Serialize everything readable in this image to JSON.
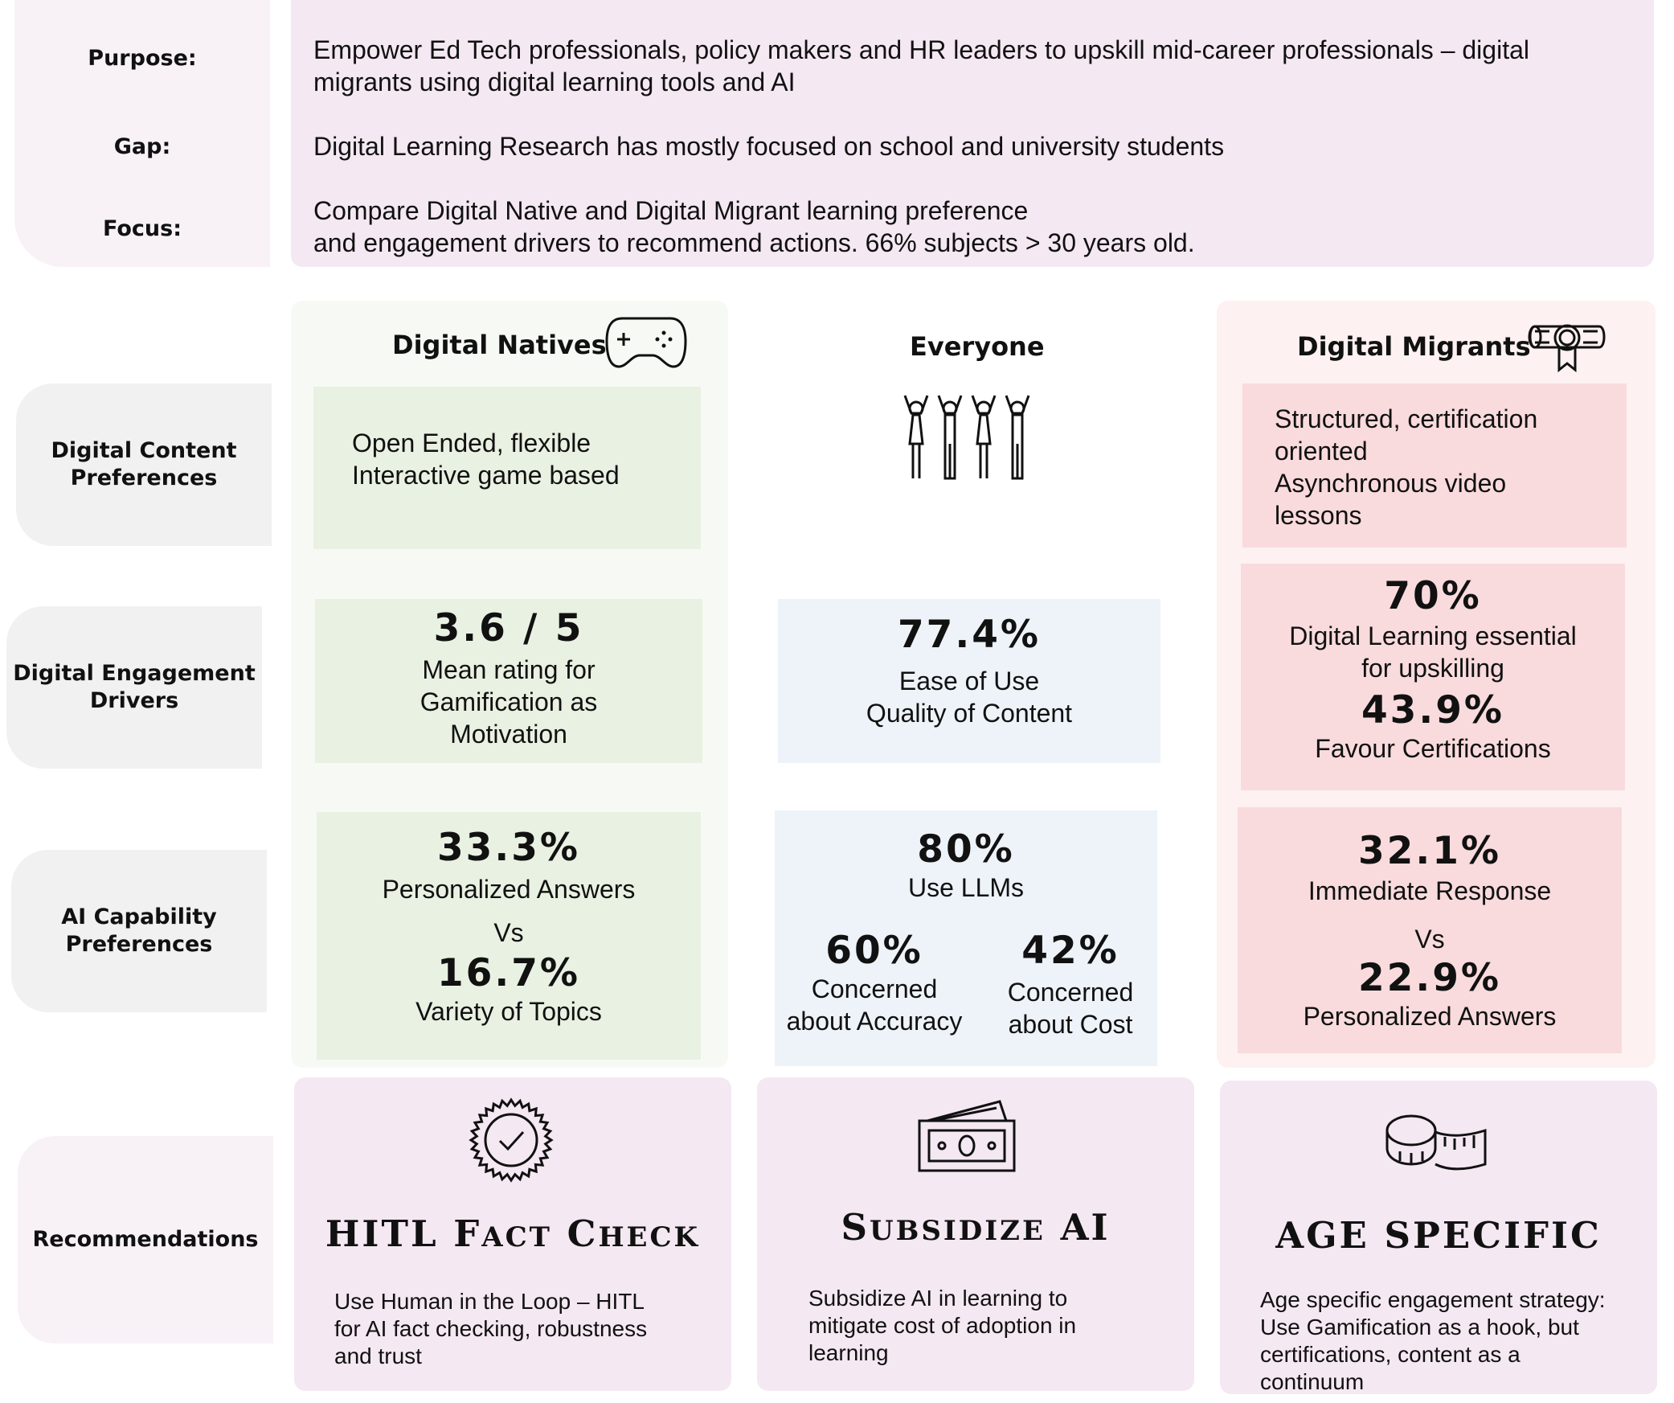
{
  "intro": {
    "purpose_label": "Purpose:",
    "purpose_text": "Empower Ed Tech professionals, policy makers and HR leaders to upskill mid-career professionals – digital migrants using digital learning tools and AI",
    "gap_label": "Gap:",
    "gap_text": "Digital Learning Research has mostly focused on school and university students",
    "focus_label": "Focus:",
    "focus_line1": "Compare Digital Native and Digital Migrant learning preference",
    "focus_line2": "and engagement drivers to recommend actions. 66% subjects > 30 years old."
  },
  "rows": {
    "content_l1": "Digital Content",
    "content_l2": "Preferences",
    "engagement_l1": "Digital Engagement",
    "engagement_l2": "Drivers",
    "ai_l1": "AI Capability",
    "ai_l2": "Preferences",
    "recommendations": "Recommendations"
  },
  "columns": {
    "natives": "Digital Natives",
    "everyone": "Everyone",
    "migrants": "Digital Migrants"
  },
  "natives": {
    "content_l1": "Open Ended, flexible",
    "content_l2": "Interactive game based",
    "engage_value": "3.6 / 5",
    "engage_l1": "Mean rating for",
    "engage_l2": "Gamification as",
    "engage_l3": "Motivation",
    "ai_value1": "33.3%",
    "ai_label1": "Personalized Answers",
    "ai_vs": "Vs",
    "ai_value2": "16.7%",
    "ai_label2": "Variety of Topics"
  },
  "everyone": {
    "engage_value": "77.4%",
    "engage_l1": "Ease of Use",
    "engage_l2": "Quality of Content",
    "ai_value": "80%",
    "ai_label": "Use LLMs",
    "ai_value_a": "60%",
    "ai_label_a1": "Concerned",
    "ai_label_a2": "about Accuracy",
    "ai_value_b": "42%",
    "ai_label_b1": "Concerned",
    "ai_label_b2": "about Cost"
  },
  "migrants": {
    "content_l1": "Structured, certification",
    "content_l2": "oriented",
    "content_l3": "Asynchronous video",
    "content_l4": "lessons",
    "engage_value1": "70%",
    "engage_l1": "Digital Learning essential",
    "engage_l2": "for upskilling",
    "engage_value2": "43.9%",
    "engage_l3": "Favour Certifications",
    "ai_value1": "32.1%",
    "ai_label1": "Immediate Response",
    "ai_vs": "Vs",
    "ai_value2": "22.9%",
    "ai_label2": "Personalized Answers"
  },
  "recommendations": [
    {
      "title_big1": "HITL F",
      "title_small1": "ACT",
      "title_big2": " C",
      "title_small2": "HECK",
      "text_l1": "Use Human in the Loop – HITL",
      "text_l2": "for AI fact checking, robustness",
      "text_l3": "and trust",
      "text_l4": ""
    },
    {
      "title_big1": "S",
      "title_small1": "UBSIDIZE",
      "title_big2": " AI",
      "title_small2": "",
      "text_l1": "Subsidize AI in learning to",
      "text_l2": "mitigate cost of adoption in",
      "text_l3": "learning",
      "text_l4": ""
    },
    {
      "title_big1": "AGE SPECIFIC",
      "title_small1": "",
      "title_big2": "",
      "title_small2": "",
      "text_l1": "Age specific engagement strategy:",
      "text_l2": "Use Gamification as a hook, but",
      "text_l3": "certifications, content as a",
      "text_l4": "continuum"
    }
  ],
  "icons": {
    "natives": "game-controller-icon",
    "everyone": "people-cheering-icon",
    "migrants": "diploma-icon",
    "rec1": "verified-badge-icon",
    "rec2": "money-icon",
    "rec3": "measuring-tape-icon"
  },
  "colors": {
    "intro_panel": "#f4e8f2",
    "natives_panel": "#f7faf4",
    "natives_box": "#e9f1e2",
    "everyone_box": "#edf3f9",
    "migrants_panel": "#fdf1f1",
    "migrants_box": "#f9dbdd",
    "recommendation_box": "#f4e8f2",
    "row_label": "#f1f1f1"
  }
}
